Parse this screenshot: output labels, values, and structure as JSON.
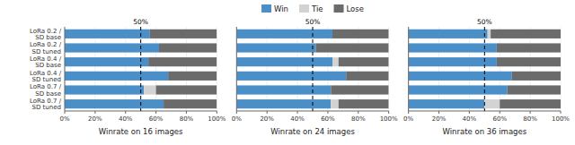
{
  "chart_data": [
    {
      "type": "bar",
      "orientation": "horizontal",
      "stacked": true,
      "categories": [
        "LoRa 0.2 /\nSD base",
        "LoRa 0.2 /\nSD tuned",
        "LoRa 0.4 /\nSD base",
        "LoRa 0.4 /\nSD tuned",
        "LoRa 0.7 /\nSD base",
        "LoRa 0.7 /\nSD tuned"
      ],
      "series": [
        {
          "name": "Win",
          "color": "#4B8FC9",
          "values": [
            0.56,
            0.62,
            0.55,
            0.68,
            0.52,
            0.65
          ]
        },
        {
          "name": "Tie",
          "color": "#D3D3D3",
          "values": [
            0.0,
            0.0,
            0.0,
            0.0,
            0.08,
            0.0
          ]
        },
        {
          "name": "Lose",
          "color": "#6B6B6B",
          "values": [
            0.44,
            0.38,
            0.45,
            0.32,
            0.4,
            0.35
          ]
        }
      ],
      "x_label": "Winrate on 16 images",
      "xlim": [
        0,
        1
      ],
      "xticks": [
        {
          "value": 0.0,
          "label": "0%"
        },
        {
          "value": 0.2,
          "label": "20%"
        },
        {
          "value": 0.4,
          "label": "40%"
        },
        {
          "value": 0.6,
          "label": "60%"
        },
        {
          "value": 0.8,
          "label": "80%"
        },
        {
          "value": 1.0,
          "label": "100%"
        }
      ],
      "annotations": [
        {
          "x": 0.5,
          "label": "50%"
        }
      ]
    },
    {
      "type": "bar",
      "orientation": "horizontal",
      "stacked": true,
      "categories": [
        null,
        null,
        null,
        null,
        null,
        null
      ],
      "series": [
        {
          "name": "Win",
          "color": "#4B8FC9",
          "values": [
            0.63,
            0.52,
            0.63,
            0.72,
            0.62,
            0.62
          ]
        },
        {
          "name": "Tie",
          "color": "#D3D3D3",
          "values": [
            0.0,
            0.0,
            0.04,
            0.0,
            0.0,
            0.05
          ]
        },
        {
          "name": "Lose",
          "color": "#6B6B6B",
          "values": [
            0.37,
            0.48,
            0.33,
            0.28,
            0.38,
            0.33
          ]
        }
      ],
      "x_label": "Winrate on 24 images",
      "xlim": [
        0,
        1
      ],
      "xticks": [
        {
          "value": 0.0,
          "label": "0%"
        },
        {
          "value": 0.2,
          "label": "20%"
        },
        {
          "value": 0.4,
          "label": "40%"
        },
        {
          "value": 0.6,
          "label": "60%"
        },
        {
          "value": 0.8,
          "label": "80%"
        },
        {
          "value": 1.0,
          "label": "100%"
        }
      ],
      "annotations": [
        {
          "x": 0.5,
          "label": "50%"
        }
      ],
      "legend": "top"
    },
    {
      "type": "bar",
      "orientation": "horizontal",
      "stacked": true,
      "categories": [
        null,
        null,
        null,
        null,
        null,
        null
      ],
      "series": [
        {
          "name": "Win",
          "color": "#4B8FC9",
          "values": [
            0.52,
            0.58,
            0.58,
            0.68,
            0.65,
            0.5
          ]
        },
        {
          "name": "Tie",
          "color": "#D3D3D3",
          "values": [
            0.02,
            0.0,
            0.0,
            0.0,
            0.0,
            0.1
          ]
        },
        {
          "name": "Lose",
          "color": "#6B6B6B",
          "values": [
            0.46,
            0.42,
            0.42,
            0.32,
            0.35,
            0.4
          ]
        }
      ],
      "x_label": "Winrate on 36 images",
      "xlim": [
        0,
        1
      ],
      "xticks": [
        {
          "value": 0.0,
          "label": "0%"
        },
        {
          "value": 0.2,
          "label": "20%"
        },
        {
          "value": 0.4,
          "label": "40%"
        },
        {
          "value": 0.6,
          "label": "60%"
        },
        {
          "value": 0.8,
          "label": "80%"
        },
        {
          "value": 1.0,
          "label": "100%"
        }
      ],
      "annotations": [
        {
          "x": 0.5,
          "label": "50%"
        }
      ]
    }
  ]
}
